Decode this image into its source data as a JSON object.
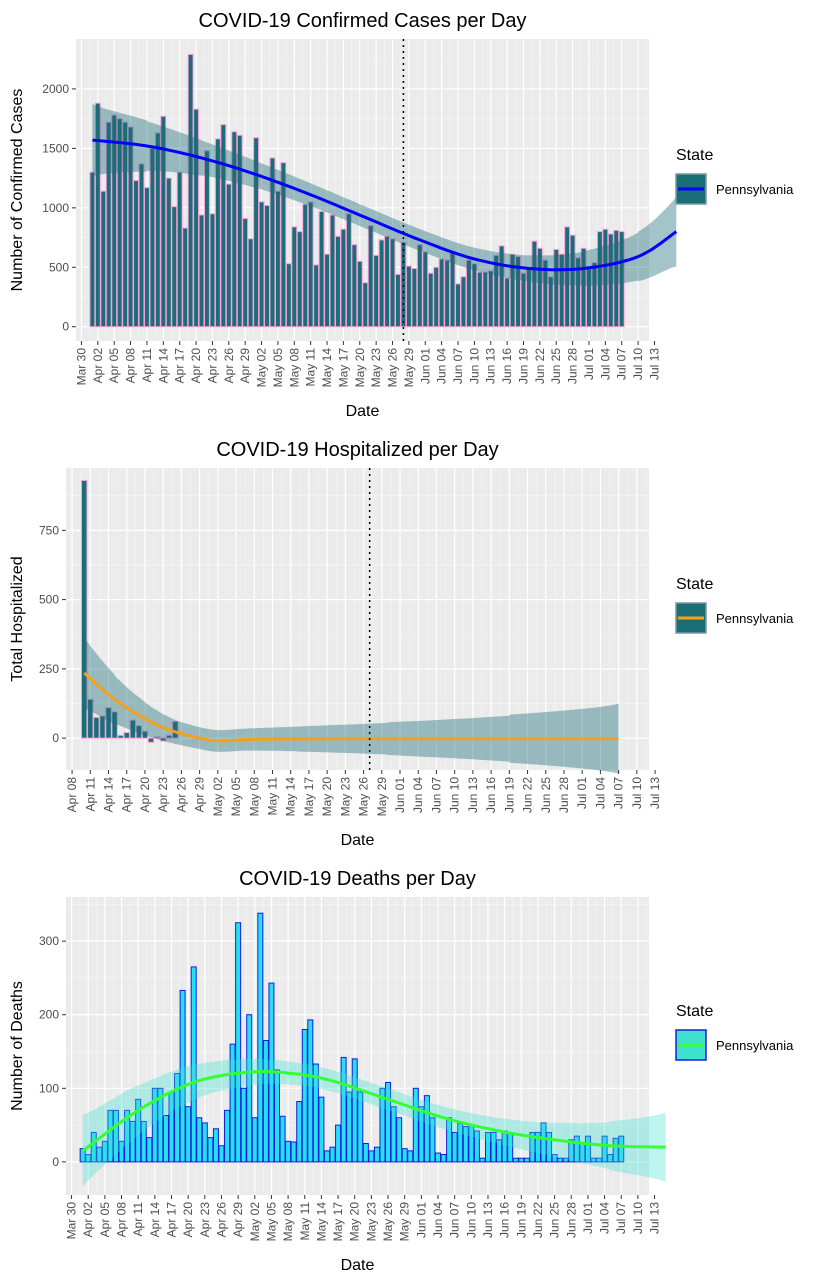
{
  "chart_data": [
    {
      "type": "bar",
      "title": "COVID-19 Confirmed Cases per Day",
      "xlabel": "Date",
      "ylabel": "Number of Confirmed Cases",
      "legend_title": "State",
      "legend_position": "right",
      "grid": true,
      "x_tick_labels": [
        "Mar 30",
        "Apr 02",
        "Apr 05",
        "Apr 08",
        "Apr 11",
        "Apr 14",
        "Apr 17",
        "Apr 20",
        "Apr 23",
        "Apr 26",
        "Apr 29",
        "May 02",
        "May 05",
        "May 08",
        "May 11",
        "May 14",
        "May 17",
        "May 20",
        "May 23",
        "May 26",
        "May 29",
        "Jun 01",
        "Jun 04",
        "Jun 07",
        "Jun 10",
        "Jun 13",
        "Jun 16",
        "Jun 19",
        "Jun 22",
        "Jun 25",
        "Jun 28",
        "Jul 01",
        "Jul 04",
        "Jul 07",
        "Jul 10",
        "Jul 13"
      ],
      "y_ticks": [
        0,
        500,
        1000,
        1500,
        2000
      ],
      "ylim": [
        -120,
        2420
      ],
      "x_range": [
        "2020-03-29",
        "2020-07-12"
      ],
      "reference_line_date": "2020-05-28",
      "series": [
        {
          "name": "Pennsylvania",
          "bar_fill": "#1a6e78",
          "bar_outline": "#ff9edb",
          "start_date": "2020-04-01",
          "values": [
            1300,
            1880,
            1140,
            1720,
            1780,
            1750,
            1720,
            1680,
            1230,
            1370,
            1170,
            1500,
            1630,
            1770,
            1250,
            1010,
            1300,
            830,
            2290,
            1830,
            940,
            1480,
            950,
            1580,
            1700,
            1200,
            1640,
            1610,
            910,
            740,
            1590,
            1050,
            1020,
            1420,
            1140,
            1380,
            530,
            840,
            800,
            1030,
            1050,
            520,
            970,
            610,
            940,
            760,
            820,
            950,
            690,
            550,
            370,
            850,
            600,
            730,
            760,
            740,
            440,
            710,
            510,
            490,
            690,
            630,
            450,
            500,
            570,
            560,
            630,
            360,
            420,
            560,
            530,
            460,
            460,
            470,
            600,
            680,
            410,
            610,
            590,
            450,
            500,
            720,
            660,
            560,
            420,
            650,
            610,
            840,
            770,
            580,
            660,
            500,
            540,
            800,
            820,
            780,
            810,
            800
          ],
          "smooth_color": "#0000ff",
          "smooth": [
            [
              0,
              1570
            ],
            [
              10,
              1520
            ],
            [
              20,
              1420
            ],
            [
              30,
              1280
            ],
            [
              40,
              1110
            ],
            [
              50,
              920
            ],
            [
              60,
              730
            ],
            [
              70,
              570
            ],
            [
              80,
              490
            ],
            [
              90,
              490
            ],
            [
              100,
              590
            ],
            [
              107,
              800
            ]
          ]
        }
      ]
    },
    {
      "type": "bar",
      "title": "COVID-19 Hospitalized per Day",
      "xlabel": "Date",
      "ylabel": "Total Hospitalized",
      "legend_title": "State",
      "legend_position": "right",
      "grid": true,
      "x_tick_labels": [
        "Apr 08",
        "Apr 11",
        "Apr 14",
        "Apr 17",
        "Apr 20",
        "Apr 23",
        "Apr 26",
        "Apr 29",
        "May 02",
        "May 05",
        "May 08",
        "May 11",
        "May 14",
        "May 17",
        "May 20",
        "May 23",
        "May 26",
        "May 29",
        "Jun 01",
        "Jun 04",
        "Jun 07",
        "Jun 10",
        "Jun 13",
        "Jun 16",
        "Jun 19",
        "Jun 22",
        "Jun 25",
        "Jun 28",
        "Jul 01",
        "Jul 04",
        "Jul 07",
        "Jul 10",
        "Jul 13"
      ],
      "y_ticks": [
        0,
        250,
        500,
        750
      ],
      "ylim": [
        -115,
        975
      ],
      "x_range": [
        "2020-04-07",
        "2020-07-12"
      ],
      "reference_line_date": "2020-05-27",
      "series": [
        {
          "name": "Pennsylvania",
          "bar_fill": "#1a6e78",
          "bar_outline": "#ff9edb",
          "start_date": "2020-04-10",
          "values": [
            930,
            140,
            75,
            80,
            110,
            95,
            10,
            20,
            65,
            45,
            25,
            -15,
            5,
            -10,
            10,
            60
          ],
          "smooth_color": "#f5a01a",
          "smooth": [
            [
              0,
              235
            ],
            [
              5,
              140
            ],
            [
              10,
              70
            ],
            [
              14,
              30
            ],
            [
              18,
              5
            ],
            [
              22,
              -10
            ],
            [
              27,
              -5
            ],
            [
              35,
              -3
            ],
            [
              50,
              -2
            ],
            [
              70,
              -2
            ],
            [
              88,
              -2
            ]
          ]
        }
      ]
    },
    {
      "type": "bar",
      "title": "COVID-19 Deaths per Day",
      "xlabel": "Date",
      "ylabel": "Number of Deaths",
      "legend_title": "State",
      "legend_position": "right",
      "grid": true,
      "x_tick_labels": [
        "Mar 30",
        "Apr 02",
        "Apr 05",
        "Apr 08",
        "Apr 11",
        "Apr 14",
        "Apr 17",
        "Apr 20",
        "Apr 23",
        "Apr 26",
        "Apr 29",
        "May 02",
        "May 05",
        "May 08",
        "May 11",
        "May 14",
        "May 17",
        "May 20",
        "May 23",
        "May 26",
        "May 29",
        "Jun 01",
        "Jun 04",
        "Jun 07",
        "Jun 10",
        "Jun 13",
        "Jun 16",
        "Jun 19",
        "Jun 22",
        "Jun 25",
        "Jun 28",
        "Jul 01",
        "Jul 04",
        "Jul 07",
        "Jul 10",
        "Jul 13"
      ],
      "y_ticks": [
        0,
        100,
        200,
        300
      ],
      "ylim": [
        -45,
        360
      ],
      "x_range": [
        "2020-03-29",
        "2020-07-12"
      ],
      "series": [
        {
          "name": "Pennsylvania",
          "bar_fill": "#25e0f5",
          "bar_outline": "#1a1adc",
          "start_date": "2020-04-01",
          "values": [
            18,
            10,
            40,
            20,
            28,
            70,
            70,
            28,
            70,
            55,
            85,
            55,
            33,
            100,
            100,
            63,
            95,
            120,
            233,
            75,
            265,
            60,
            53,
            33,
            45,
            22,
            70,
            160,
            325,
            100,
            200,
            60,
            338,
            165,
            243,
            125,
            62,
            28,
            27,
            82,
            180,
            193,
            133,
            88,
            15,
            20,
            50,
            142,
            95,
            140,
            95,
            25,
            15,
            20,
            100,
            108,
            75,
            60,
            18,
            15,
            100,
            75,
            90,
            60,
            12,
            10,
            60,
            40,
            52,
            48,
            50,
            42,
            5,
            40,
            40,
            30,
            42,
            40,
            5,
            5,
            5,
            40,
            40,
            53,
            40,
            10,
            5,
            5,
            30,
            35,
            25,
            35,
            5,
            5,
            35,
            10,
            32,
            35
          ]
        }
      ],
      "smooth_color": "#33ff33",
      "smooth": [
        [
          0,
          15
        ],
        [
          10,
          70
        ],
        [
          20,
          108
        ],
        [
          30,
          122
        ],
        [
          38,
          120
        ],
        [
          45,
          110
        ],
        [
          55,
          85
        ],
        [
          65,
          60
        ],
        [
          75,
          42
        ],
        [
          85,
          30
        ],
        [
          95,
          22
        ],
        [
          105,
          20
        ]
      ]
    }
  ]
}
